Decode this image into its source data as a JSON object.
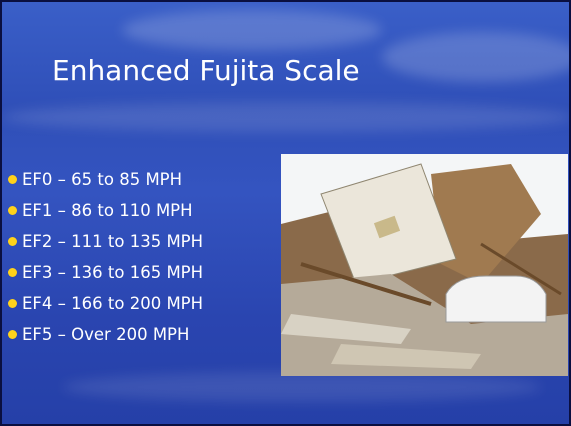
{
  "slide": {
    "title": "Enhanced Fujita Scale",
    "bullets": [
      "EF0 – 65 to 85 MPH",
      "EF1 – 86 to 110 MPH",
      "EF2 – 111 to 135 MPH",
      "EF3 – 136 to 165 MPH",
      "EF4 – 166 to 200 MPH",
      "EF5 – Over 200 MPH"
    ]
  }
}
